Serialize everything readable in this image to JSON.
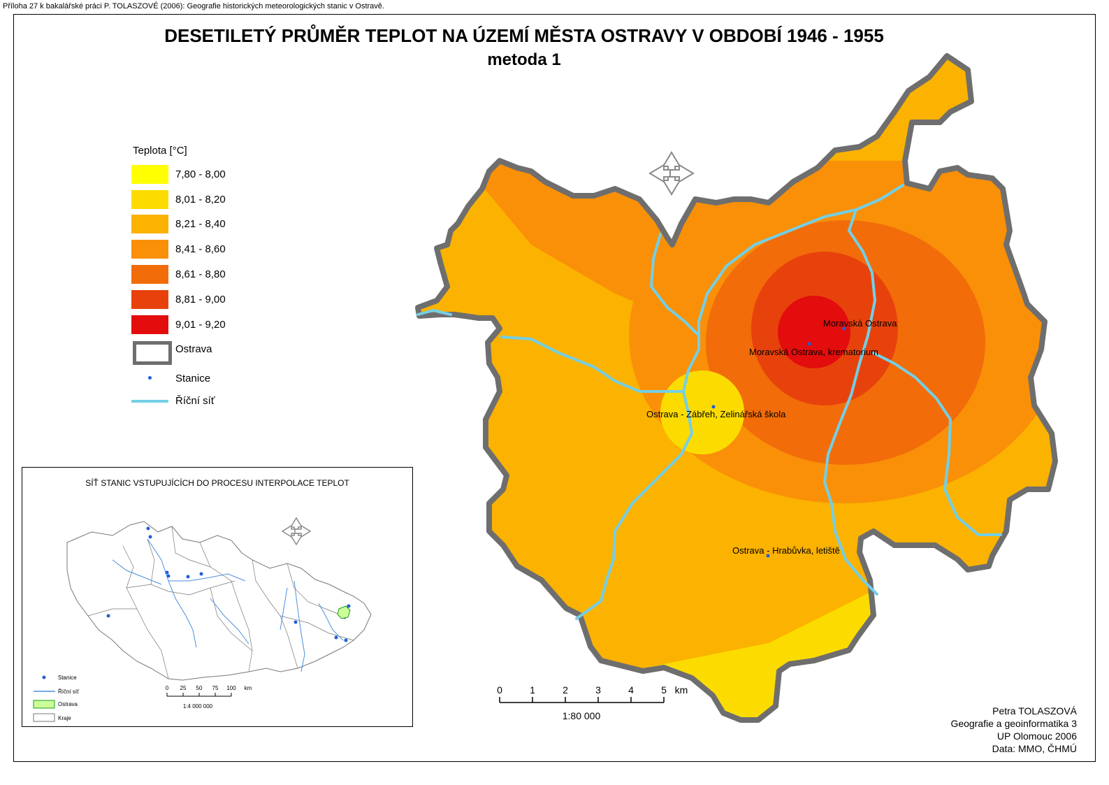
{
  "caption": "Příloha 27 k bakalářské práci P. TOLASZOVÉ (2006): Geografie historických meteorologických stanic v Ostravě.",
  "title": "DESETILETÝ PRŮMĚR TEPLOT NA ÚZEMÍ MĚSTA OSTRAVY V OBDOBÍ 1946 - 1955",
  "subtitle": "metoda 1",
  "legend": {
    "title": "Teplota [°C]",
    "classes": [
      {
        "label": "7,80 - 8,00",
        "color": "#ffff00"
      },
      {
        "label": "8,01 - 8,20",
        "color": "#fcdc00"
      },
      {
        "label": "8,21 - 8,40",
        "color": "#fbb200"
      },
      {
        "label": "8,41 - 8,60",
        "color": "#f99008"
      },
      {
        "label": "8,61 - 8,80",
        "color": "#f26c0a"
      },
      {
        "label": "8,81 - 9,00",
        "color": "#e8420c"
      },
      {
        "label": "9,01 - 9,20",
        "color": "#e30d0d"
      }
    ],
    "boundary_label": "Ostrava",
    "stations_label": "Stanice",
    "rivers_label": "Říční síť"
  },
  "stations": [
    {
      "name": "Moravská Ostrava"
    },
    {
      "name": "Moravská Ostrava, krematorium"
    },
    {
      "name": "Ostrava - Zábřeh, Zelinářská škola"
    },
    {
      "name": "Ostrava - Hrabůvka, letiště"
    }
  ],
  "scalebar": {
    "ticks": [
      "0",
      "1",
      "2",
      "3",
      "4",
      "5"
    ],
    "unit": "km",
    "ratio": "1:80 000"
  },
  "inset": {
    "title": "SÍŤ STANIC VSTUPUJÍCÍCH DO PROCESU INTERPOLACE TEPLOT",
    "legend": {
      "stations": "Stanice",
      "rivers": "Říční síť",
      "ostrava": "Ostrava",
      "regions": "Kraje"
    },
    "scale_ticks": [
      "0",
      "25",
      "50",
      "75",
      "100"
    ],
    "scale_unit": "km",
    "scale_ratio": "1:4 000 000"
  },
  "credits": [
    "Petra TOLASZOVÁ",
    "Geografie a geoinformatika 3",
    "UP Olomouc 2006",
    "Data: MMO, ČHMÚ"
  ],
  "colors": {
    "boundary": "#6e6e6e",
    "river": "#73cfe6",
    "station": "#1f5fd6",
    "inset_ostrava": "#ccff99"
  },
  "icons": [
    "north-arrow-icon",
    "inset-north-arrow-icon"
  ]
}
